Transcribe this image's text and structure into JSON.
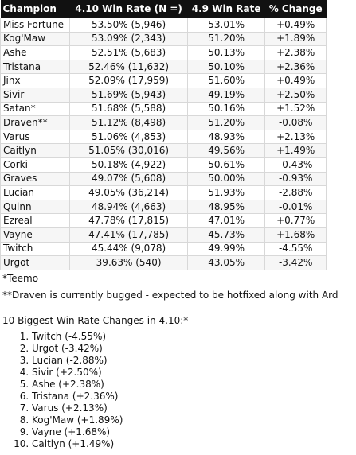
{
  "table": {
    "header": [
      "Champion",
      "4.10 Win Rate (N =)",
      "4.9 Win Rate",
      "% Change"
    ],
    "rows": [
      [
        "Miss Fortune",
        "53.50% (5,946)",
        "53.01%",
        "+0.49%"
      ],
      [
        "Kog'Maw",
        "53.09% (2,343)",
        "51.20%",
        "+1.89%"
      ],
      [
        "Ashe",
        "52.51% (5,683)",
        "50.13%",
        "+2.38%"
      ],
      [
        "Tristana",
        "52.46% (11,632)",
        "50.10%",
        "+2.36%"
      ],
      [
        "Jinx",
        "52.09% (17,959)",
        "51.60%",
        "+0.49%"
      ],
      [
        "Sivir",
        "51.69% (5,943)",
        "49.19%",
        "+2.50%"
      ],
      [
        "Satan*",
        "51.68% (5,588)",
        "50.16%",
        "+1.52%"
      ],
      [
        "Draven**",
        "51.12% (8,498)",
        "51.20%",
        "-0.08%"
      ],
      [
        "Varus",
        "51.06% (4,853)",
        "48.93%",
        "+2.13%"
      ],
      [
        "Caitlyn",
        "51.05% (30,016)",
        "49.56%",
        "+1.49%"
      ],
      [
        "Corki",
        "50.18% (4,922)",
        "50.61%",
        "-0.43%"
      ],
      [
        "Graves",
        "49.07% (5,608)",
        "50.00%",
        "-0.93%"
      ],
      [
        "Lucian",
        "49.05% (36,214)",
        "51.93%",
        "-2.88%"
      ],
      [
        "Quinn",
        "48.94% (4,663)",
        "48.95%",
        "-0.01%"
      ],
      [
        "Ezreal",
        "47.78% (17,815)",
        "47.01%",
        "+0.77%"
      ],
      [
        "Vayne",
        "47.41% (17,785)",
        "45.73%",
        "+1.68%"
      ],
      [
        "Twitch",
        "45.44% (9,078)",
        "49.99%",
        "-4.55%"
      ],
      [
        "Urgot",
        "39.63% (540)",
        "43.05%",
        "-3.42%"
      ]
    ]
  },
  "notes": [
    "*Teemo",
    "**Draven is currently bugged - expected to be hotfixed along with Ard"
  ],
  "list": {
    "title": "10 Biggest Win Rate Changes in 4.10:*",
    "items": [
      "Twitch (-4.55%)",
      "Urgot (-3.42%)",
      "Lucian (-2.88%)",
      "Sivir (+2.50%)",
      "Ashe (+2.38%)",
      "Tristana (+2.36%)",
      "Varus (+2.13%)",
      "Kog'Maw (+1.89%)",
      "Vayne (+1.68%)",
      "Caitlyn (+1.49%)"
    ]
  }
}
